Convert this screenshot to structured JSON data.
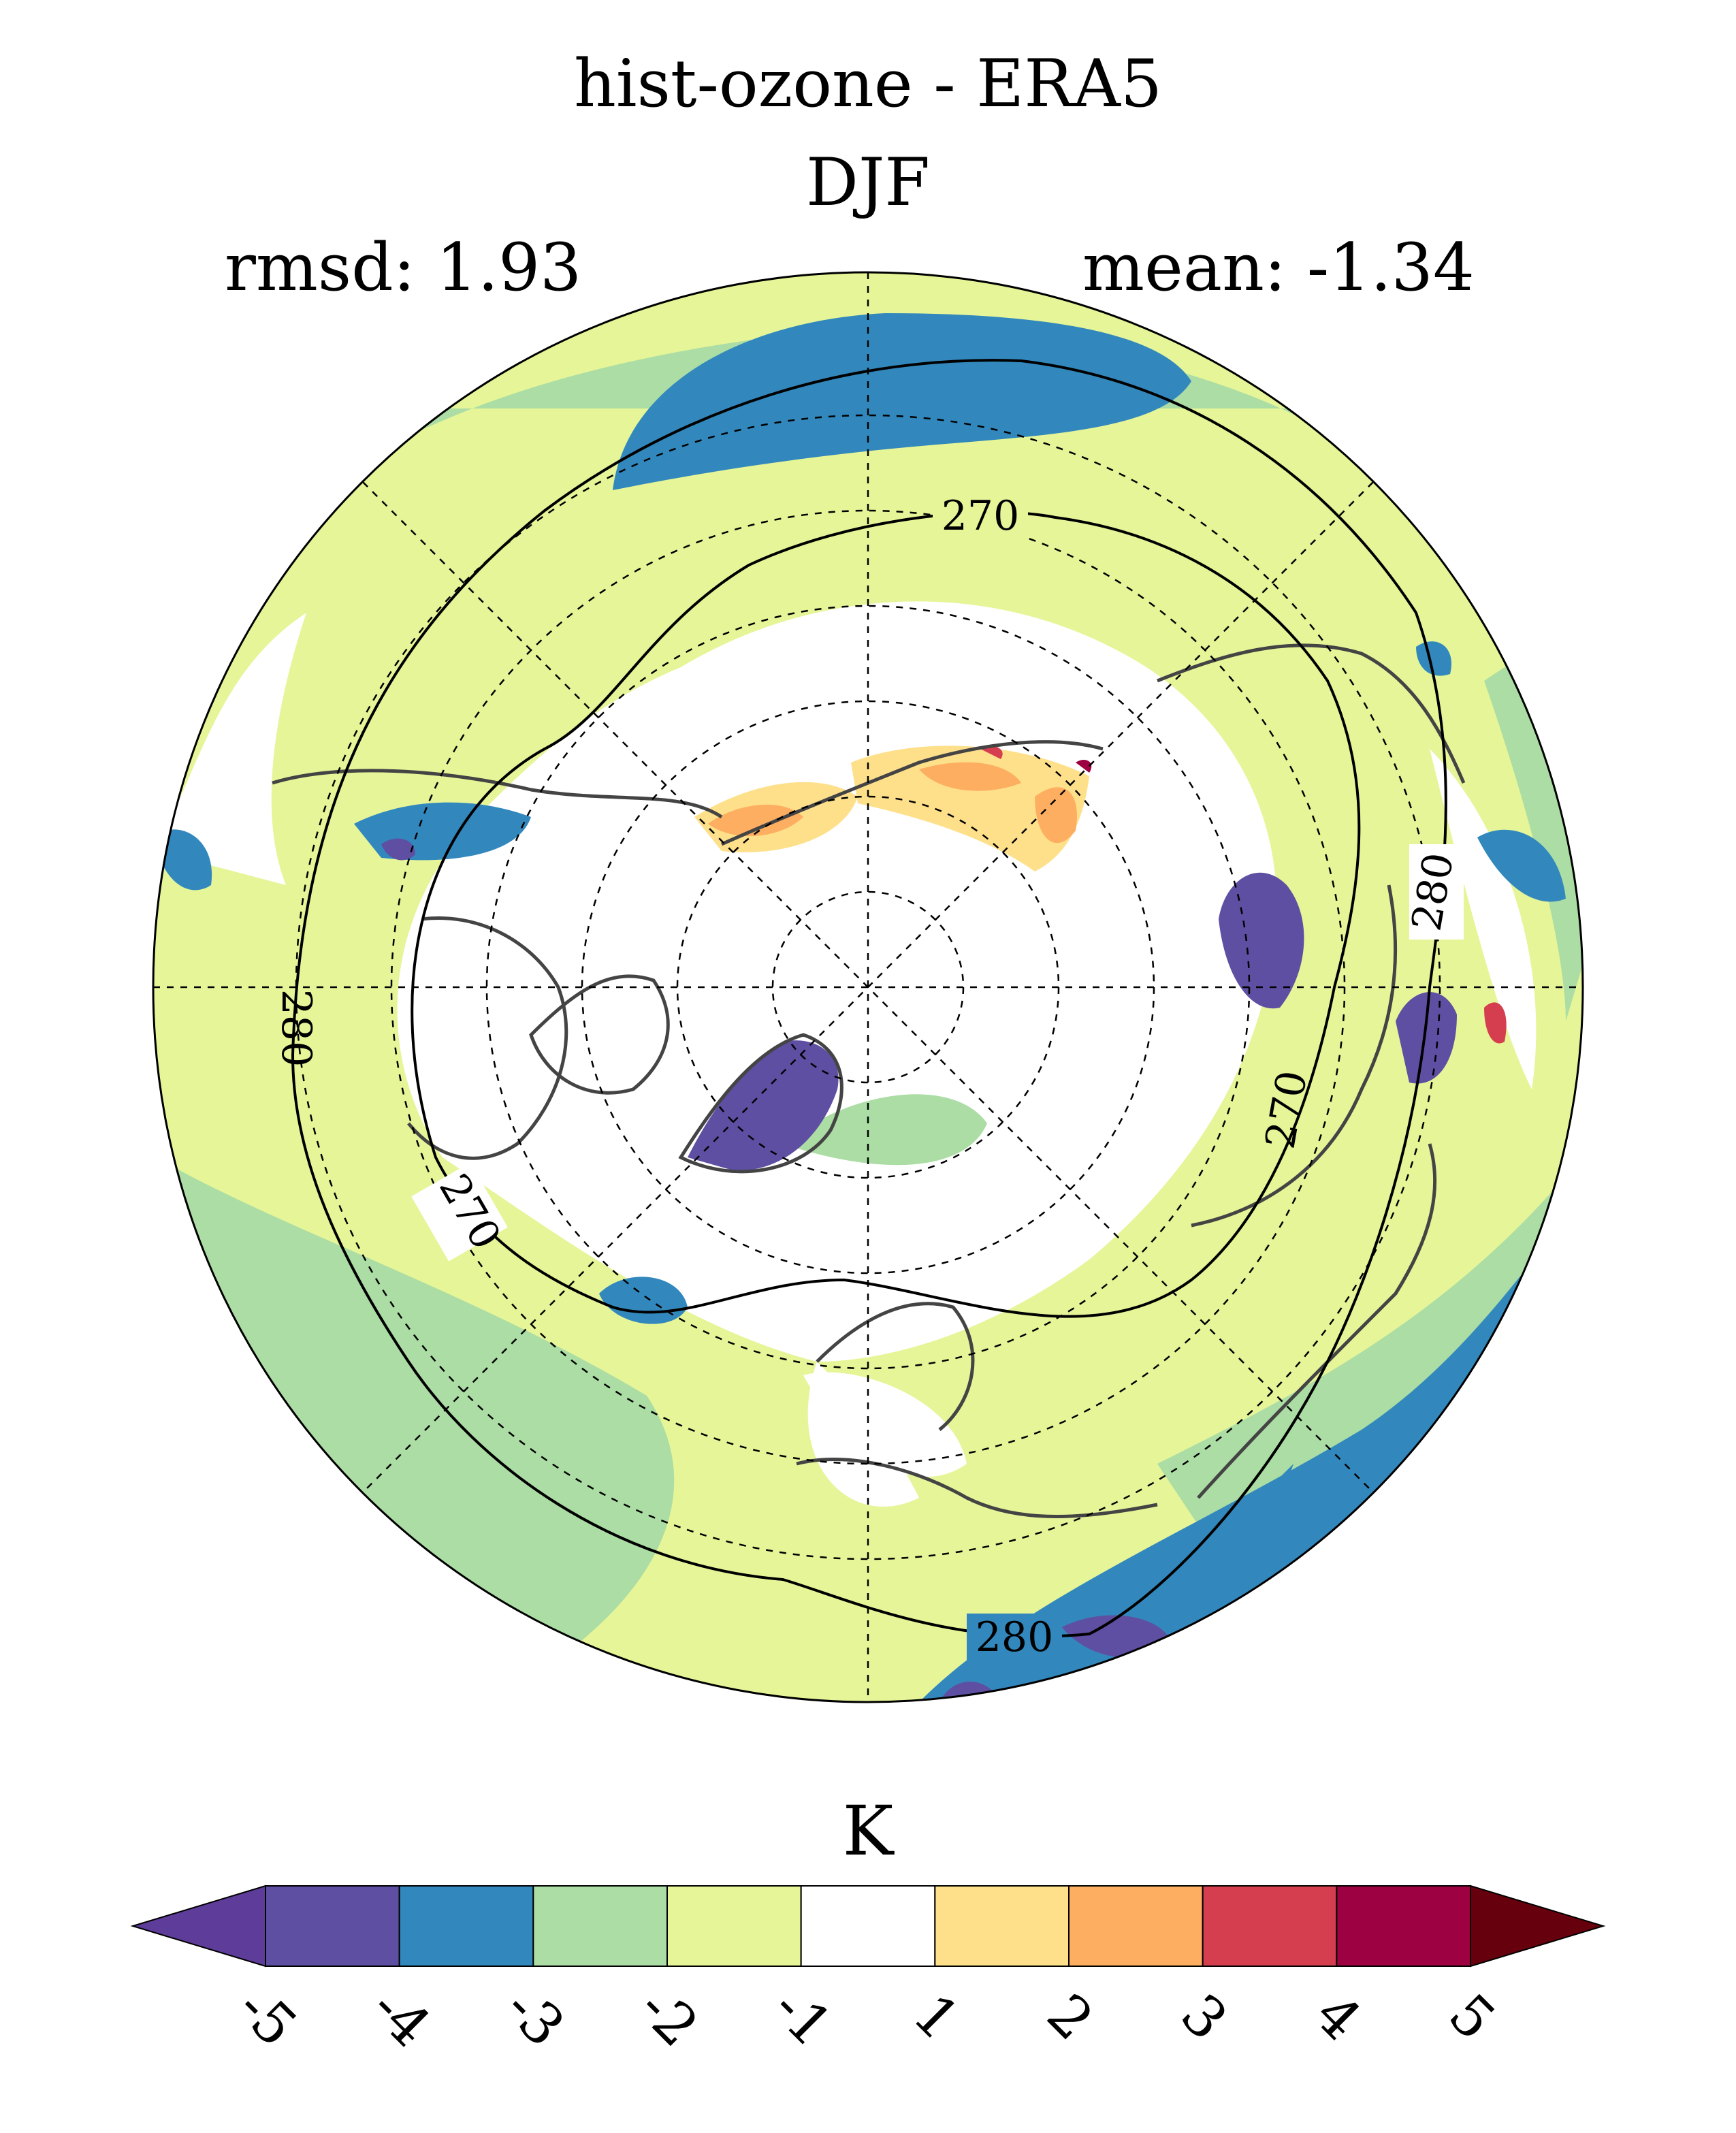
{
  "title": {
    "line1": "hist-ozone - ERA5",
    "line2": "DJF"
  },
  "stats": {
    "rmsd": "rmsd: 1.93",
    "mean": "mean: -1.34"
  },
  "map": {
    "projection": "north-polar-stereographic",
    "contour_labels": [
      "270",
      "270",
      "270",
      "280",
      "280",
      "280"
    ]
  },
  "colorbar": {
    "unit": "K",
    "ticks": [
      "-5",
      "-4",
      "-3",
      "-2",
      "-1",
      "1",
      "2",
      "3",
      "4",
      "5"
    ],
    "colors": [
      "#5E4FA2",
      "#3288BD",
      "#ABDDA4",
      "#E6F598",
      "#FFFFFF",
      "#FEE08B",
      "#FDAE61",
      "#D53E4F",
      "#9E0142"
    ],
    "under_color": "#5E3C99",
    "over_color": "#67000D"
  }
}
